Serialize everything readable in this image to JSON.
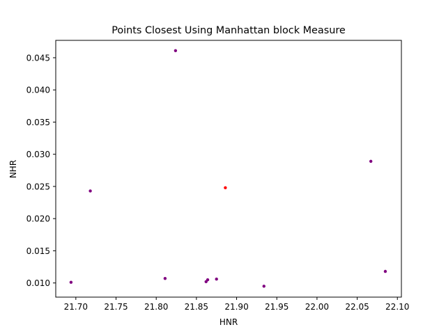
{
  "chart_data": {
    "type": "scatter",
    "title": "Points Closest Using Manhattan block Measure",
    "xlabel": "HNR",
    "ylabel": "NHR",
    "xlim": [
      21.675,
      22.105
    ],
    "ylim": [
      0.0078,
      0.0477
    ],
    "xticks": [
      "21.70",
      "21.75",
      "21.80",
      "21.85",
      "21.90",
      "21.95",
      "22.00",
      "22.05",
      "22.10"
    ],
    "yticks": [
      "0.010",
      "0.015",
      "0.020",
      "0.025",
      "0.030",
      "0.035",
      "0.040",
      "0.045"
    ],
    "grid": false,
    "series": [
      {
        "color": "#800080",
        "points": [
          {
            "x": 21.694,
            "y": 0.0101
          },
          {
            "x": 21.718,
            "y": 0.0243
          },
          {
            "x": 21.811,
            "y": 0.0107
          },
          {
            "x": 21.824,
            "y": 0.0461
          },
          {
            "x": 21.862,
            "y": 0.0102
          },
          {
            "x": 21.864,
            "y": 0.0105
          },
          {
            "x": 21.875,
            "y": 0.0106
          },
          {
            "x": 21.934,
            "y": 0.0095
          },
          {
            "x": 22.067,
            "y": 0.0289
          },
          {
            "x": 22.085,
            "y": 0.0118
          }
        ]
      },
      {
        "color": "#ff0000",
        "points": [
          {
            "x": 21.886,
            "y": 0.0248
          }
        ]
      }
    ]
  }
}
